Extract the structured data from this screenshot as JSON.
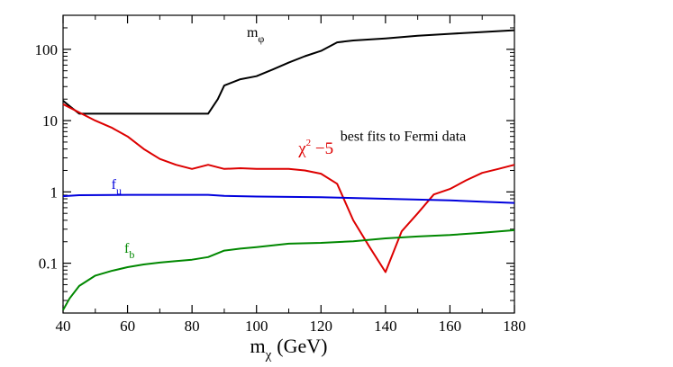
{
  "chart_data": {
    "type": "line",
    "title": "",
    "xlabel": "m",
    "xlabel_sub": "χ",
    "xlabel_unit": "(GeV)",
    "ylabel": "",
    "yscale": "log",
    "xlim": [
      40,
      180
    ],
    "ylim": [
      0.02,
      300
    ],
    "x_ticks": [
      40,
      60,
      80,
      100,
      120,
      140,
      160,
      180
    ],
    "x_tick_labels": [
      "40",
      "60",
      "80",
      "100",
      "120",
      "140",
      "160",
      "180"
    ],
    "y_ticks": [
      0.1,
      1,
      10,
      100
    ],
    "y_tick_labels": [
      "0.1",
      "1",
      "10",
      "100"
    ],
    "grid": false,
    "annotations": {
      "fit_note": "best fits to Fermi data",
      "m_phi_main": "m",
      "m_phi_sub": "φ",
      "chi_main": "χ",
      "chi_sup": "2",
      "chi_rest": " −5",
      "fu_main": "f",
      "fu_sub": "u",
      "fb_main": "f",
      "fb_sub": "b"
    },
    "series": [
      {
        "name": "m_phi",
        "color": "#000000",
        "points": [
          [
            40,
            19
          ],
          [
            42,
            16
          ],
          [
            45,
            12.5
          ],
          [
            50,
            12.5
          ],
          [
            60,
            12.5
          ],
          [
            70,
            12.5
          ],
          [
            80,
            12.5
          ],
          [
            85,
            12.5
          ],
          [
            88,
            20
          ],
          [
            90,
            31
          ],
          [
            95,
            38
          ],
          [
            100,
            42
          ],
          [
            105,
            52
          ],
          [
            110,
            65
          ],
          [
            115,
            80
          ],
          [
            120,
            95
          ],
          [
            125,
            125
          ],
          [
            130,
            133
          ],
          [
            140,
            142
          ],
          [
            150,
            155
          ],
          [
            160,
            165
          ],
          [
            170,
            175
          ],
          [
            180,
            185
          ]
        ]
      },
      {
        "name": "chi2_minus_5",
        "color": "#dd0000",
        "points": [
          [
            40,
            17
          ],
          [
            45,
            13
          ],
          [
            50,
            10
          ],
          [
            55,
            8
          ],
          [
            60,
            6
          ],
          [
            65,
            4
          ],
          [
            70,
            2.9
          ],
          [
            75,
            2.4
          ],
          [
            80,
            2.1
          ],
          [
            85,
            2.4
          ],
          [
            90,
            2.1
          ],
          [
            95,
            2.15
          ],
          [
            100,
            2.1
          ],
          [
            105,
            2.1
          ],
          [
            110,
            2.1
          ],
          [
            115,
            2.0
          ],
          [
            120,
            1.8
          ],
          [
            125,
            1.3
          ],
          [
            130,
            0.4
          ],
          [
            135,
            0.17
          ],
          [
            140,
            0.075
          ],
          [
            145,
            0.28
          ],
          [
            150,
            0.5
          ],
          [
            155,
            0.92
          ],
          [
            160,
            1.1
          ],
          [
            165,
            1.45
          ],
          [
            170,
            1.85
          ],
          [
            175,
            2.1
          ],
          [
            180,
            2.4
          ]
        ]
      },
      {
        "name": "f_u",
        "color": "#0000dd",
        "points": [
          [
            40,
            0.87
          ],
          [
            45,
            0.9
          ],
          [
            60,
            0.91
          ],
          [
            80,
            0.91
          ],
          [
            85,
            0.91
          ],
          [
            90,
            0.88
          ],
          [
            100,
            0.86
          ],
          [
            120,
            0.84
          ],
          [
            140,
            0.8
          ],
          [
            160,
            0.76
          ],
          [
            170,
            0.73
          ],
          [
            180,
            0.7
          ]
        ]
      },
      {
        "name": "f_b",
        "color": "#008800",
        "points": [
          [
            40,
            0.022
          ],
          [
            42,
            0.032
          ],
          [
            45,
            0.048
          ],
          [
            50,
            0.067
          ],
          [
            55,
            0.078
          ],
          [
            60,
            0.088
          ],
          [
            65,
            0.096
          ],
          [
            70,
            0.102
          ],
          [
            75,
            0.107
          ],
          [
            80,
            0.112
          ],
          [
            85,
            0.122
          ],
          [
            90,
            0.15
          ],
          [
            95,
            0.16
          ],
          [
            100,
            0.168
          ],
          [
            110,
            0.188
          ],
          [
            120,
            0.193
          ],
          [
            130,
            0.203
          ],
          [
            140,
            0.223
          ],
          [
            150,
            0.237
          ],
          [
            160,
            0.248
          ],
          [
            170,
            0.268
          ],
          [
            180,
            0.29
          ]
        ]
      }
    ]
  }
}
